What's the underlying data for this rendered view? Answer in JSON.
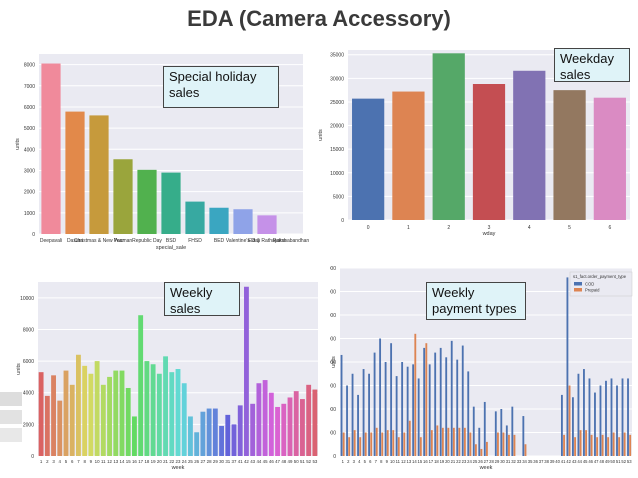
{
  "page": {
    "title": "EDA (Camera Accessory)",
    "callouts": {
      "holiday": "Special holiday sales",
      "weekday": "Weekday sales",
      "weekly": "Weekly sales",
      "payment": "Weekly payment types"
    }
  },
  "colors": {
    "plot_bg": "#eaeaf2",
    "grid": "#ffffff",
    "title": "#3a3a3a",
    "callout_bg": "#dff3f8",
    "cod": "#4c72b0",
    "prepaid": "#dd8452"
  },
  "chart_data": [
    {
      "id": "holiday",
      "type": "bar",
      "xlabel": "special_sale",
      "ylabel": "units",
      "ylim": [
        0,
        8500
      ],
      "yticks": [
        0,
        1000,
        2000,
        3000,
        4000,
        5000,
        6000,
        7000,
        8000
      ],
      "grid": true,
      "categories": [
        "Deepavali",
        "Dasara",
        "Christmas & New Year",
        "Pacman",
        "Republic Day",
        "BSD",
        "FHSD",
        "BED",
        "Valentine's Day",
        "Eid & Rathayatra",
        "Rakshabandhan"
      ],
      "values": [
        8050,
        5780,
        5600,
        3530,
        3030,
        2900,
        1530,
        1240,
        1170,
        880,
        0
      ],
      "colors": [
        "#f08a9b",
        "#e2894a",
        "#c69a3c",
        "#9aa53c",
        "#51b14e",
        "#36ad8a",
        "#37a9a1",
        "#3aa6c1",
        "#8fa3e8",
        "#c591e8",
        "#e98ad0"
      ]
    },
    {
      "id": "weekday",
      "type": "bar",
      "xlabel": "wday",
      "ylabel": "units",
      "ylim": [
        0,
        36000
      ],
      "yticks": [
        0,
        5000,
        10000,
        15000,
        20000,
        25000,
        30000,
        35000
      ],
      "grid": true,
      "categories": [
        "0",
        "1",
        "2",
        "3",
        "4",
        "5",
        "6"
      ],
      "values": [
        25700,
        27200,
        35300,
        28800,
        31600,
        27500,
        25900
      ],
      "colors": [
        "#4c72b0",
        "#dd8452",
        "#55a868",
        "#c44e52",
        "#8172b3",
        "#937860",
        "#da8bc3"
      ]
    },
    {
      "id": "weekly",
      "type": "bar",
      "xlabel": "week",
      "ylabel": "units",
      "ylim": [
        0,
        11000
      ],
      "yticks": [
        0,
        2000,
        4000,
        6000,
        8000,
        10000
      ],
      "grid": true,
      "categories": [
        "1",
        "2",
        "3",
        "4",
        "5",
        "6",
        "7",
        "8",
        "9",
        "10",
        "11",
        "12",
        "13",
        "14",
        "15",
        "16",
        "17",
        "18",
        "19",
        "20",
        "21",
        "22",
        "23",
        "24",
        "25",
        "26",
        "27",
        "28",
        "29",
        "30",
        "31",
        "37",
        "41",
        "42",
        "43",
        "44",
        "45",
        "46",
        "47",
        "48",
        "49",
        "50",
        "51",
        "52",
        "53"
      ],
      "values": [
        5300,
        3800,
        5100,
        3500,
        5400,
        4500,
        6400,
        5700,
        5200,
        6000,
        4500,
        5000,
        5400,
        5400,
        4300,
        2500,
        8900,
        6000,
        5800,
        5200,
        6300,
        5300,
        5500,
        4600,
        2500,
        1500,
        2800,
        3000,
        3000,
        1900,
        2600,
        2000,
        3200,
        10700,
        3300,
        4600,
        4800,
        4000,
        3100,
        3300,
        3700,
        4100,
        3600,
        4500,
        4200
      ]
    },
    {
      "id": "payment",
      "type": "bar",
      "xlabel": "week",
      "ylabel": "units",
      "ylim": [
        0,
        8000
      ],
      "yticks": [
        0,
        1000,
        2000,
        3000,
        4000,
        5000,
        6000,
        7000,
        8000
      ],
      "grid": true,
      "legend": {
        "title": "s1_fact.order_payment_type",
        "placement": "top-right"
      },
      "categories": [
        "1",
        "2",
        "3",
        "4",
        "5",
        "6",
        "7",
        "8",
        "9",
        "10",
        "11",
        "12",
        "13",
        "14",
        "15",
        "16",
        "17",
        "18",
        "19",
        "20",
        "21",
        "22",
        "23",
        "24",
        "25",
        "26",
        "27",
        "28",
        "29",
        "30",
        "31",
        "32",
        "33",
        "34",
        "35",
        "36",
        "37",
        "38",
        "39",
        "40",
        "41",
        "42",
        "43",
        "44",
        "45",
        "46",
        "47",
        "48",
        "49",
        "50",
        "51",
        "52",
        "53"
      ],
      "series": [
        {
          "name": "COD",
          "values": [
            4300,
            3000,
            3500,
            2600,
            3700,
            3500,
            4400,
            5000,
            4000,
            4800,
            3400,
            4000,
            3800,
            3900,
            3300,
            4600,
            3900,
            4400,
            4600,
            4200,
            4900,
            4100,
            4700,
            3600,
            2100,
            1200,
            2300,
            0,
            1900,
            2000,
            1300,
            2100,
            0,
            1700,
            0,
            0,
            0,
            0,
            0,
            0,
            2600,
            7600,
            2500,
            3500,
            3700,
            3300,
            2700,
            3000,
            3200,
            3300,
            3000,
            3300,
            3300
          ]
        },
        {
          "name": "Prepaid",
          "values": [
            1000,
            800,
            1100,
            800,
            1000,
            1000,
            1200,
            1000,
            1100,
            1100,
            800,
            1000,
            1500,
            5200,
            800,
            4800,
            1100,
            1300,
            1200,
            1200,
            1200,
            1200,
            1200,
            1000,
            500,
            300,
            600,
            0,
            1000,
            1000,
            900,
            900,
            0,
            500,
            0,
            0,
            0,
            0,
            0,
            0,
            900,
            3000,
            800,
            1100,
            1100,
            900,
            800,
            900,
            800,
            1000,
            800,
            1000,
            900
          ]
        }
      ]
    }
  ]
}
